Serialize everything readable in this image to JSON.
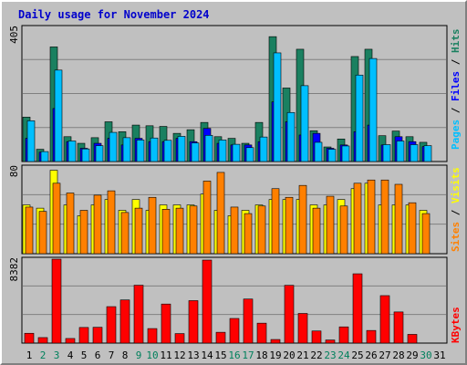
{
  "title": "Daily usage for November 2024",
  "chart_data": [
    {
      "type": "bar",
      "title": "Daily usage for November 2024",
      "ymax_label": "405",
      "ylim": [
        0,
        405
      ],
      "x": [
        1,
        2,
        3,
        4,
        5,
        6,
        7,
        8,
        9,
        10,
        11,
        12,
        13,
        14,
        15,
        16,
        17,
        18,
        19,
        20,
        21,
        22,
        23,
        24,
        25,
        26,
        27,
        28,
        29,
        30,
        31
      ],
      "series": [
        {
          "name": "Hits",
          "color": "#1a8060",
          "values": [
            134,
            37,
            346,
            75,
            55,
            72,
            120,
            90,
            110,
            108,
            106,
            85,
            96,
            118,
            75,
            70,
            55,
            118,
            377,
            222,
            339,
            93,
            44,
            68,
            317,
            339,
            78,
            92,
            75,
            58,
            0
          ]
        },
        {
          "name": "Files",
          "color": "#0000ff",
          "values": [
            70,
            28,
            160,
            60,
            40,
            55,
            70,
            50,
            70,
            60,
            60,
            70,
            60,
            100,
            55,
            50,
            50,
            60,
            180,
            120,
            80,
            85,
            40,
            50,
            90,
            110,
            50,
            75,
            60,
            45,
            0
          ]
        },
        {
          "name": "Pages",
          "color": "#00bfff",
          "values": [
            123,
            30,
            276,
            62,
            38,
            48,
            88,
            72,
            65,
            71,
            64,
            76,
            56,
            79,
            65,
            52,
            42,
            74,
            328,
            148,
            229,
            58,
            37,
            47,
            261,
            311,
            51,
            62,
            51,
            48,
            0
          ]
        }
      ]
    },
    {
      "type": "bar",
      "ymax_label": "80",
      "ylim": [
        0,
        80
      ],
      "series": [
        {
          "name": "Visits",
          "color": "#ffff00",
          "values": [
            45,
            42,
            77,
            45,
            35,
            45,
            50,
            40,
            50,
            40,
            45,
            45,
            45,
            55,
            40,
            35,
            40,
            45,
            50,
            50,
            50,
            45,
            45,
            50,
            60,
            65,
            45,
            45,
            45,
            40,
            0
          ]
        },
        {
          "name": "Sites",
          "color": "#ff8000",
          "values": [
            43,
            39,
            65,
            56,
            40,
            54,
            58,
            38,
            42,
            52,
            41,
            42,
            44,
            67,
            75,
            43,
            37,
            44,
            60,
            52,
            63,
            42,
            53,
            44,
            65,
            68,
            68,
            64,
            47,
            37,
            0
          ]
        }
      ]
    },
    {
      "type": "bar",
      "ymax_label": "8382",
      "ylim": [
        0,
        8382
      ],
      "series": [
        {
          "name": "KBytes",
          "color": "#ff0000",
          "values": [
            980,
            550,
            8382,
            460,
            1560,
            1580,
            3640,
            4310,
            5780,
            1450,
            3900,
            950,
            4240,
            8290,
            1080,
            2460,
            4400,
            1990,
            360,
            5770,
            2960,
            1210,
            310,
            1620,
            6920,
            1260,
            4740,
            3110,
            870,
            0,
            0
          ]
        }
      ]
    }
  ],
  "labels": {
    "axis_top": {
      "pages": "Pages",
      "files": "Files",
      "hits": "Hits",
      "sep": " / "
    },
    "axis_mid": {
      "sites": "Sites",
      "visits": "Visits",
      "sep": " / "
    },
    "axis_bottom": {
      "kbytes": "KBytes"
    }
  },
  "day_label_colors": {
    "weekday": "#000000",
    "weekend": "#00805c"
  },
  "weekend_days": [
    2,
    3,
    9,
    10,
    16,
    17,
    23,
    24,
    30
  ]
}
